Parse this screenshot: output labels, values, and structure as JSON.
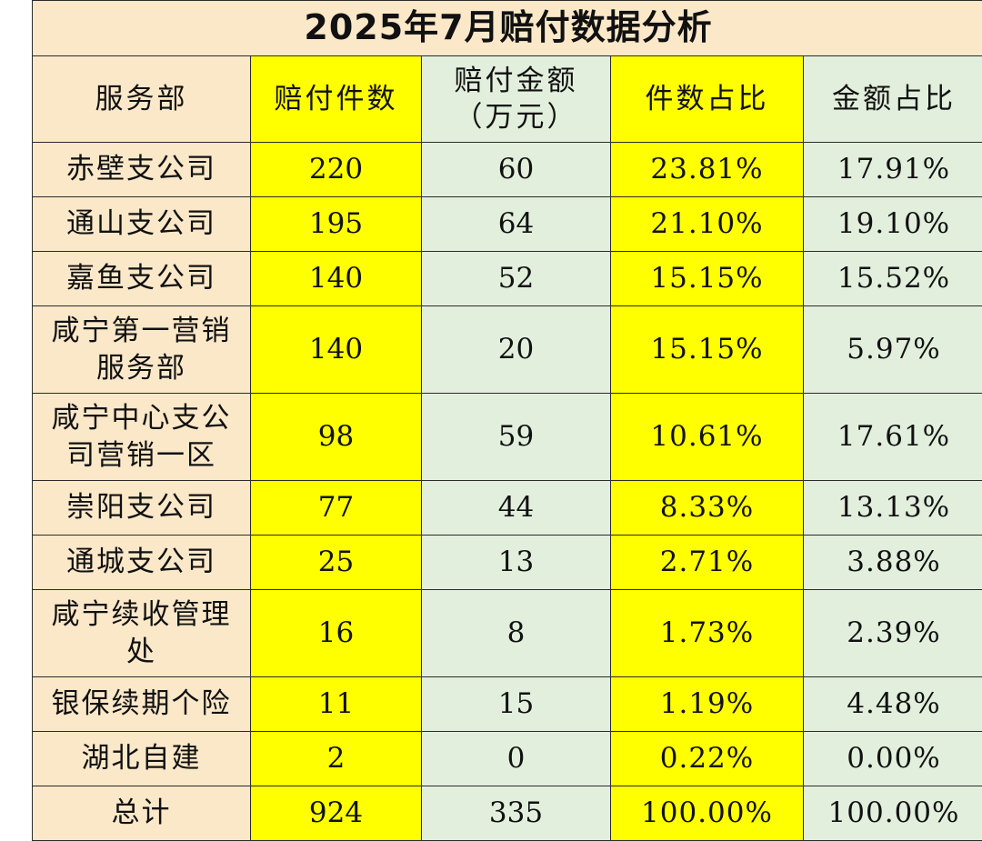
{
  "title": "2025年7月赔付数据分析",
  "headers": {
    "department": "服务部",
    "claim_count": "赔付件数",
    "claim_amount_line1": "赔付金额",
    "claim_amount_line2": "（万元）",
    "count_ratio": "件数占比",
    "amount_ratio": "金额占比"
  },
  "rows": [
    {
      "name": "赤壁支公司",
      "count": "220",
      "amount": "60",
      "count_pct": "23.81%",
      "amount_pct": "17.91%"
    },
    {
      "name": "通山支公司",
      "count": "195",
      "amount": "64",
      "count_pct": "21.10%",
      "amount_pct": "19.10%"
    },
    {
      "name": "嘉鱼支公司",
      "count": "140",
      "amount": "52",
      "count_pct": "15.15%",
      "amount_pct": "15.52%"
    },
    {
      "name": "咸宁第一营销服务部",
      "count": "140",
      "amount": "20",
      "count_pct": "15.15%",
      "amount_pct": "5.97%"
    },
    {
      "name": "咸宁中心支公司营销一区",
      "count": "98",
      "amount": "59",
      "count_pct": "10.61%",
      "amount_pct": "17.61%"
    },
    {
      "name": "崇阳支公司",
      "count": "77",
      "amount": "44",
      "count_pct": "8.33%",
      "amount_pct": "13.13%"
    },
    {
      "name": "通城支公司",
      "count": "25",
      "amount": "13",
      "count_pct": "2.71%",
      "amount_pct": "3.88%"
    },
    {
      "name": "咸宁续收管理处",
      "count": "16",
      "amount": "8",
      "count_pct": "1.73%",
      "amount_pct": "2.39%"
    },
    {
      "name": "银保续期个险",
      "count": "11",
      "amount": "15",
      "count_pct": "1.19%",
      "amount_pct": "4.48%"
    },
    {
      "name": "湖北自建",
      "count": "2",
      "amount": "0",
      "count_pct": "0.22%",
      "amount_pct": "0.00%"
    }
  ],
  "total": {
    "name": "总计",
    "count": "924",
    "amount": "335",
    "count_pct": "100.00%",
    "amount_pct": "100.00%"
  },
  "colors": {
    "name_column_bg": "#fbe8c9",
    "yellow_column_bg": "#ffff00",
    "green_column_bg": "#e2efdd",
    "border": "#2b2b2b"
  }
}
